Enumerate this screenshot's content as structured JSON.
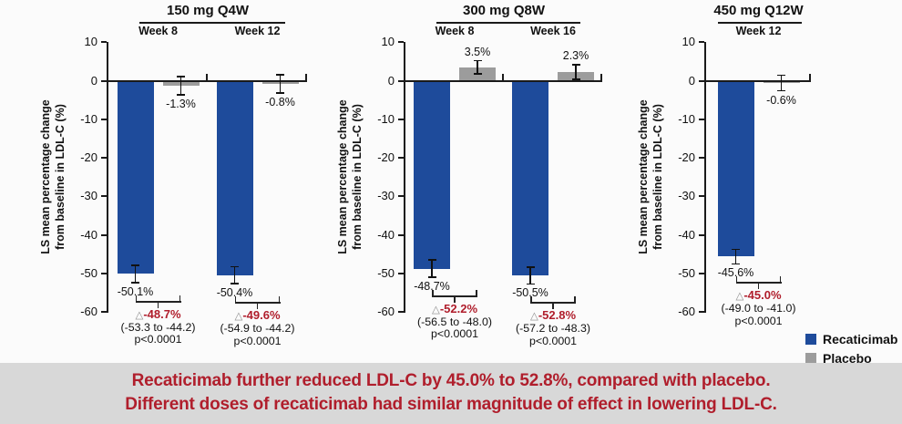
{
  "colors": {
    "recaticimab": "#1E4B9B",
    "placebo": "#9C9C9C",
    "delta_red": "#B01E2C",
    "banner_bg": "#D8D8D8",
    "banner_text": "#B01E2C",
    "axis": "#1A1A1A",
    "background": "#FBFBFB"
  },
  "legend": {
    "items": [
      {
        "label": "Recaticimab",
        "color_key": "recaticimab"
      },
      {
        "label": "Placebo",
        "color_key": "placebo"
      }
    ]
  },
  "banner": {
    "line1": "Recaticimab further reduced LDL-C by 45.0% to 52.8%, compared with placebo.",
    "line2": "Different doses of recaticimab had similar magnitude of effect in lowering LDL-C."
  },
  "chart_data": {
    "type": "bar",
    "ylabel": [
      "LS mean percentage change",
      "from baseline in LDL-C (%)"
    ],
    "ylabel_full": "LS mean percentage change from baseline in LDL-C (%)",
    "ylim": [
      -60,
      10
    ],
    "yticks": [
      10,
      0,
      -10,
      -20,
      -30,
      -40,
      -50,
      -60
    ],
    "series_names": [
      "Recaticimab",
      "Placebo"
    ],
    "panels": [
      {
        "title": "150 mg Q4W",
        "groups": [
          {
            "week": "Week 8",
            "recaticimab": {
              "value": -50.1,
              "label": "-50.1%",
              "err": 2.2
            },
            "placebo": {
              "value": -1.3,
              "label": "-1.3%",
              "err": 2.4
            },
            "delta": {
              "symbol": "△",
              "label": "-48.7%",
              "ci": "(-53.3 to -44.2)",
              "p": "p<0.0001"
            }
          },
          {
            "week": "Week 12",
            "recaticimab": {
              "value": -50.4,
              "label": "-50.4%",
              "err": 2.2
            },
            "placebo": {
              "value": -0.8,
              "label": "-0.8%",
              "err": 2.4
            },
            "delta": {
              "symbol": "△",
              "label": "-49.6%",
              "ci": "(-54.9 to -44.2)",
              "p": "p<0.0001"
            }
          }
        ]
      },
      {
        "title": "300 mg Q8W",
        "groups": [
          {
            "week": "Week 8",
            "recaticimab": {
              "value": -48.7,
              "label": "-48.7%",
              "err": 2.2
            },
            "placebo": {
              "value": 3.5,
              "label": "3.5%",
              "err": 1.7
            },
            "delta": {
              "symbol": "△",
              "label": "-52.2%",
              "ci": "(-56.5 to -48.0)",
              "p": "p<0.0001"
            }
          },
          {
            "week": "Week 16",
            "recaticimab": {
              "value": -50.5,
              "label": "-50.5%",
              "err": 2.2
            },
            "placebo": {
              "value": 2.3,
              "label": "2.3%",
              "err": 1.9
            },
            "delta": {
              "symbol": "△",
              "label": "-52.8%",
              "ci": "(-57.2 to -48.3)",
              "p": "p<0.0001"
            }
          }
        ]
      },
      {
        "title": "450 mg Q12W",
        "groups": [
          {
            "week": "Week 12",
            "recaticimab": {
              "value": -45.6,
              "label": "-45.6%",
              "err": 1.9
            },
            "placebo": {
              "value": -0.6,
              "label": "-0.6%",
              "err": 2.0
            },
            "delta": {
              "symbol": "△",
              "label": "-45.0%",
              "ci": "(-49.0 to -41.0)",
              "p": "p<0.0001"
            }
          }
        ]
      }
    ]
  }
}
